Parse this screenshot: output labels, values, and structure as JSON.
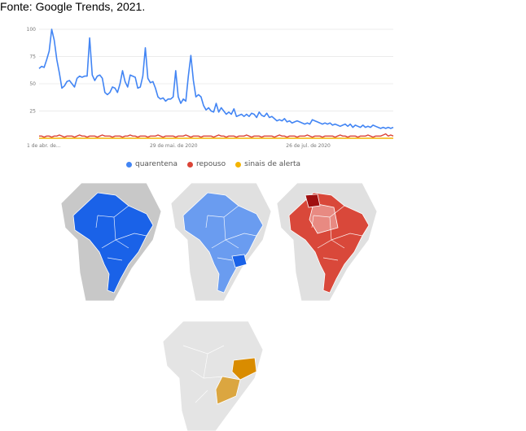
{
  "source_text": "Fonte: Google Trends, 2021.",
  "chart_data": {
    "type": "line",
    "ylim": [
      0,
      100
    ],
    "y_ticks": [
      "100",
      "75",
      "50",
      "25"
    ],
    "x_ticks": [
      "1 de abr. de...",
      "29 de mai. de 2020",
      "26 de jul. de 2020"
    ],
    "grid": true,
    "legend_position": "bottom",
    "series": [
      {
        "name": "quarentena",
        "color": "#4285f4",
        "values": [
          64,
          66,
          65,
          72,
          80,
          100,
          90,
          72,
          60,
          46,
          48,
          52,
          53,
          50,
          47,
          55,
          57,
          56,
          57,
          57,
          92,
          58,
          53,
          57,
          58,
          55,
          42,
          40,
          42,
          47,
          46,
          42,
          50,
          62,
          52,
          47,
          58,
          57,
          56,
          46,
          47,
          57,
          83,
          55,
          51,
          52,
          46,
          38,
          36,
          37,
          34,
          36,
          36,
          38,
          62,
          38,
          32,
          36,
          34,
          57,
          76,
          53,
          38,
          40,
          38,
          30,
          26,
          28,
          25,
          24,
          32,
          24,
          28,
          25,
          22,
          24,
          22,
          27,
          20,
          21,
          22,
          20,
          22,
          20,
          23,
          22,
          19,
          24,
          21,
          20,
          23,
          19,
          20,
          18,
          16,
          17,
          16,
          18,
          15,
          16,
          14,
          15,
          16,
          15,
          14,
          13,
          14,
          13,
          17,
          16,
          15,
          14,
          13,
          14,
          13,
          14,
          12,
          13,
          12,
          11,
          12,
          13,
          11,
          13,
          10,
          12,
          11,
          10,
          12,
          10,
          11,
          10,
          12,
          11,
          10,
          9,
          10,
          9,
          10,
          9,
          10
        ]
      },
      {
        "name": "repouso",
        "color": "#db4437",
        "values": [
          2,
          2,
          1,
          2,
          2,
          1,
          2,
          2,
          3,
          2,
          1,
          2,
          2,
          2,
          1,
          2,
          3,
          2,
          2,
          1,
          2,
          2,
          2,
          1,
          2,
          3,
          2,
          2,
          2,
          1,
          2,
          2,
          2,
          1,
          2,
          2,
          3,
          2,
          2,
          1,
          2,
          2,
          2,
          1,
          2,
          2,
          2,
          3,
          2,
          1,
          2,
          2,
          2,
          2,
          1,
          2,
          2,
          2,
          3,
          2,
          1,
          2,
          2,
          2,
          1,
          2,
          2,
          2,
          2,
          1,
          2,
          3,
          2,
          2,
          1,
          2,
          2,
          2,
          1,
          2,
          2,
          2,
          3,
          2,
          1,
          2,
          2,
          2,
          1,
          2,
          2,
          2,
          2,
          1,
          2,
          3,
          2,
          2,
          1,
          2,
          2,
          2,
          1,
          2,
          2,
          2,
          3,
          2,
          1,
          2,
          2,
          2,
          1,
          2,
          2,
          2,
          2,
          1,
          2,
          3,
          2,
          2,
          1,
          2,
          2,
          2,
          1,
          2,
          2,
          2,
          3,
          2,
          1,
          2,
          2,
          2,
          3,
          4,
          2,
          3,
          2
        ]
      },
      {
        "name": "sinais de alerta",
        "color": "#f4b400",
        "values": [
          0,
          0,
          0,
          0,
          0,
          0,
          0,
          0,
          0,
          0,
          0,
          0,
          0,
          0,
          0,
          0,
          0,
          0,
          0,
          0,
          0,
          0,
          0,
          0,
          0,
          0,
          0,
          0,
          0,
          0,
          0,
          0,
          0,
          0,
          0,
          0,
          0,
          0,
          0,
          0,
          0,
          0,
          0,
          0,
          0,
          0,
          0,
          0,
          0,
          0,
          0,
          0,
          0,
          0,
          0,
          0,
          0,
          0,
          0,
          0,
          0,
          0,
          0,
          0,
          0,
          0,
          0,
          0,
          0,
          0,
          0,
          0,
          0,
          0,
          0,
          0,
          0,
          0,
          0,
          0,
          0,
          0,
          0,
          0,
          0,
          0,
          0,
          0,
          0,
          0,
          0,
          0,
          0,
          0,
          0,
          0,
          0,
          0,
          0,
          0,
          0,
          0,
          0,
          0,
          0,
          0,
          0,
          0,
          0,
          0,
          0,
          0,
          0,
          0,
          0,
          0,
          0,
          0,
          0,
          0,
          0,
          0,
          0,
          0,
          0,
          0,
          0,
          0,
          0,
          0,
          0,
          0,
          0,
          0,
          0,
          0,
          0,
          0,
          0,
          0,
          0
        ]
      }
    ]
  },
  "maps": {
    "quarentena": {
      "color": "#1a62e8",
      "mode": "all-states",
      "context_color": "#c8c8c8"
    },
    "repouso": {
      "color": "#6a9cf0",
      "mode": "all-states",
      "context_color": "#e0e0e0"
    },
    "sinais_de_alerta_red": {
      "color": "#d9483a",
      "mode": "most-states",
      "context_color": "#e0e0e0"
    },
    "sinais_de_alerta_gold": {
      "color": "#d99a1a",
      "mode": "southeast-only",
      "context_color": "#e4e4e4"
    }
  }
}
